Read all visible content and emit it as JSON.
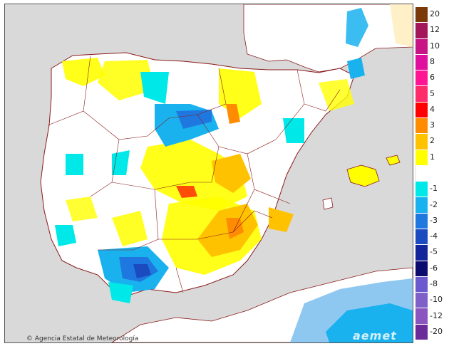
{
  "map": {
    "credit": "Agencia Estatal de Meteorología",
    "credit_symbol": "©",
    "watermark": "aemet",
    "colors": {
      "sea": "#d9d9d9",
      "land_neutral": "#ffffff",
      "border": "#8b1a1a",
      "water_sea_anom": "#8ec8f0"
    }
  },
  "legend": {
    "items": [
      {
        "label": "20",
        "color": "#7b3a0a"
      },
      {
        "label": "12",
        "color": "#a3175a"
      },
      {
        "label": "10",
        "color": "#c71585"
      },
      {
        "label": "8",
        "color": "#e0109e"
      },
      {
        "label": "6",
        "color": "#ff1493"
      },
      {
        "label": "5",
        "color": "#ff2b6b"
      },
      {
        "label": "4",
        "color": "#ff0000"
      },
      {
        "label": "3",
        "color": "#ff8c00"
      },
      {
        "label": "2",
        "color": "#ffc200"
      },
      {
        "label": "1",
        "color": "#ffff00"
      },
      {
        "label": "",
        "color": "#ffffff"
      },
      {
        "label": "-1",
        "color": "#00e8e8"
      },
      {
        "label": "-2",
        "color": "#19b2ee"
      },
      {
        "label": "-3",
        "color": "#1f78e0"
      },
      {
        "label": "-4",
        "color": "#1a4cc0"
      },
      {
        "label": "-5",
        "color": "#13259a"
      },
      {
        "label": "-6",
        "color": "#0b0b6e"
      },
      {
        "label": "-8",
        "color": "#6a5acd"
      },
      {
        "label": "-10",
        "color": "#7f5fc8"
      },
      {
        "label": "-12",
        "color": "#8a55bf"
      },
      {
        "label": "-20",
        "color": "#6a2a9a"
      }
    ]
  }
}
